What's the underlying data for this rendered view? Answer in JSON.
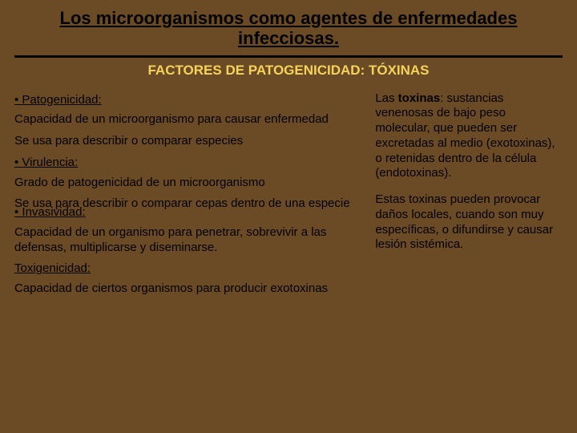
{
  "colors": {
    "background": "#6b4a26",
    "title_color": "#000000",
    "subtitle_color": "#f5d35b",
    "body_color": "#000000",
    "rule_color": "#000000"
  },
  "typography": {
    "title_fontsize": 22,
    "subtitle_fontsize": 17,
    "body_fontsize": 15,
    "title_weight": "bold",
    "subtitle_weight": "bold"
  },
  "title": "Los microorganismos como agentes de enfermedades infecciosas.",
  "subtitle": "FACTORES DE PATOGENICIDAD: TÓXINAS",
  "left": {
    "term1_bullet": "• ",
    "term1": "Patogenicidad:",
    "p1": "Capacidad de un microorganismo para causar enfermedad",
    "p2": "Se usa para describir o comparar especies",
    "term2_bullet": "• ",
    "term2": "Virulencia:",
    "p3": "Grado de patogenicidad de un microorganismo",
    "p4": "Se usa para describir o comparar cepas dentro de una especie",
    "term3_bullet": "• ",
    "term3": "Invasividad:",
    "p5": "Capacidad de un organismo para penetrar, sobrevivir a las defensas, multiplicarse y diseminarse.",
    "term4": " Toxigenicidad:",
    "p6": "  Capacidad de ciertos organismos para producir exotoxinas"
  },
  "right": {
    "r1a": "Las ",
    "r1b": "toxinas",
    "r1c": ": sustancias venenosas de bajo peso molecular, que pueden ser excretadas al medio (exotoxinas), o retenidas dentro de la célula (endotoxinas).",
    "r2": "Estas toxinas pueden provocar daños locales, cuando son muy específicas, o difundirse y causar lesión sistémica."
  }
}
